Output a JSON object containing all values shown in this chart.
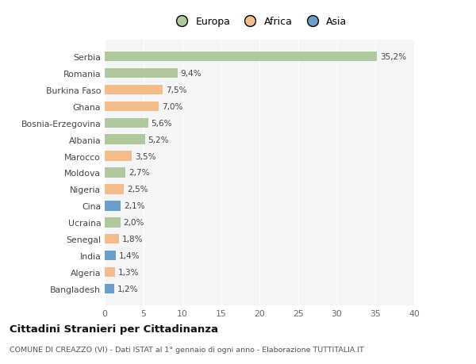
{
  "countries": [
    "Serbia",
    "Romania",
    "Burkina Faso",
    "Ghana",
    "Bosnia-Erzegovina",
    "Albania",
    "Marocco",
    "Moldova",
    "Nigeria",
    "Cina",
    "Ucraina",
    "Senegal",
    "India",
    "Algeria",
    "Bangladesh"
  ],
  "values": [
    35.2,
    9.4,
    7.5,
    7.0,
    5.6,
    5.2,
    3.5,
    2.7,
    2.5,
    2.1,
    2.0,
    1.8,
    1.4,
    1.3,
    1.2
  ],
  "labels": [
    "35,2%",
    "9,4%",
    "7,5%",
    "7,0%",
    "5,6%",
    "5,2%",
    "3,5%",
    "2,7%",
    "2,5%",
    "2,1%",
    "2,0%",
    "1,8%",
    "1,4%",
    "1,3%",
    "1,2%"
  ],
  "continents": [
    "Europa",
    "Europa",
    "Africa",
    "Africa",
    "Europa",
    "Europa",
    "Africa",
    "Europa",
    "Africa",
    "Asia",
    "Europa",
    "Africa",
    "Asia",
    "Africa",
    "Asia"
  ],
  "colors": {
    "Europa": "#afc89c",
    "Africa": "#f2bc8d",
    "Asia": "#6b9ec9"
  },
  "title": "Cittadini Stranieri per Cittadinanza",
  "subtitle": "COMUNE DI CREAZZO (VI) - Dati ISTAT al 1° gennaio di ogni anno - Elaborazione TUTTITALIA.IT",
  "xlim": [
    0,
    40
  ],
  "xticks": [
    0,
    5,
    10,
    15,
    20,
    25,
    30,
    35,
    40
  ],
  "background_color": "#ffffff",
  "plot_bg_color": "#f5f5f8",
  "grid_color": "#ffffff"
}
